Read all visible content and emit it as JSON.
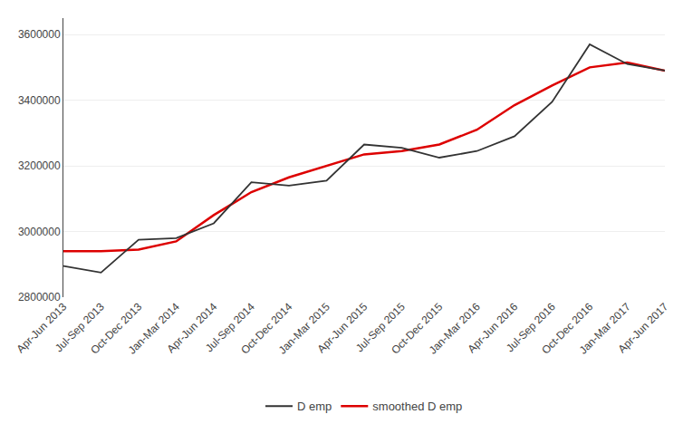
{
  "chart_data": {
    "type": "line",
    "categories": [
      "Apr-Jun 2013",
      "Jul-Sep 2013",
      "Oct-Dec 2013",
      "Jan-Mar 2014",
      "Apr-Jun 2014",
      "Jul-Sep 2014",
      "Oct-Dec 2014",
      "Jan-Mar 2015",
      "Apr-Jun 2015",
      "Jul-Sep 2015",
      "Oct-Dec 2015",
      "Jan-Mar 2016",
      "Apr-Jun 2016",
      "Jul-Sep 2016",
      "Oct-Dec 2016",
      "Jan-Mar 2017",
      "Apr-Jun 2017"
    ],
    "series": [
      {
        "name": "D emp",
        "color": "#333333",
        "values": [
          2895000,
          2875000,
          2975000,
          2980000,
          3025000,
          3150000,
          3140000,
          3155000,
          3265000,
          3255000,
          3225000,
          3245000,
          3290000,
          3395000,
          3570000,
          3510000,
          3490000
        ]
      },
      {
        "name": "smoothed D emp",
        "color": "#dd0000",
        "values": [
          2940000,
          2940000,
          2945000,
          2970000,
          3050000,
          3120000,
          3165000,
          3200000,
          3235000,
          3245000,
          3265000,
          3310000,
          3385000,
          3445000,
          3500000,
          3515000,
          3490000
        ]
      }
    ],
    "ylim": [
      2800000,
      3650000
    ],
    "yticks": [
      2800000,
      3000000,
      3200000,
      3400000,
      3600000
    ],
    "grid": true,
    "legend": "bottom"
  }
}
